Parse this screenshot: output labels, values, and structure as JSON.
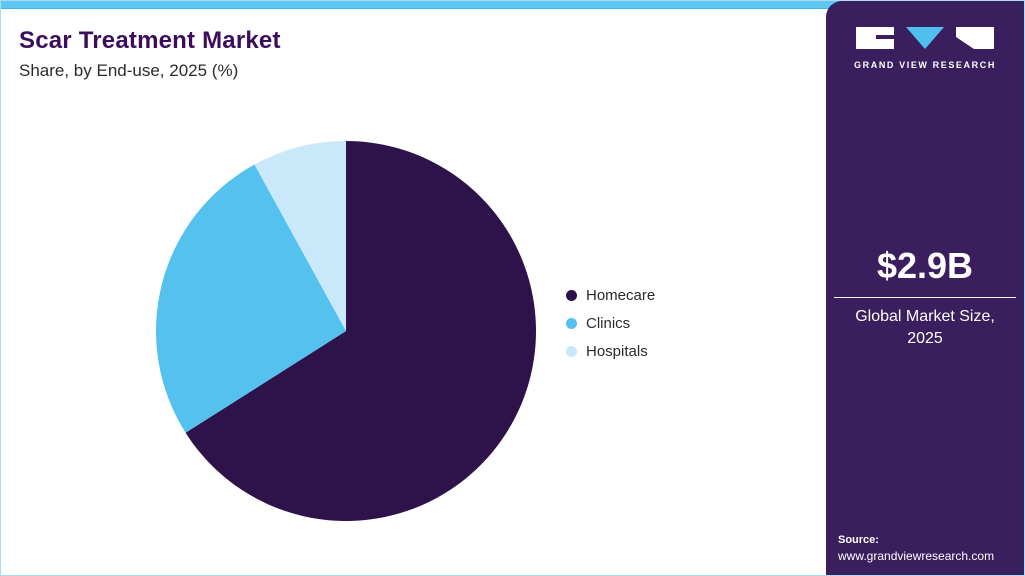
{
  "header": {
    "title": "Scar Treatment Market",
    "subtitle": "Share, by End-use, 2025 (%)"
  },
  "chart_data": {
    "type": "pie",
    "title": "Scar Treatment Market Share, by End-use, 2025 (%)",
    "categories": [
      "Homecare",
      "Clinics",
      "Hospitals"
    ],
    "values": [
      66,
      26,
      8
    ],
    "unit": "%",
    "colors": [
      "#2d1349",
      "#55c1ef",
      "#c9e9fb"
    ],
    "start_angle_deg": 0,
    "direction": "clockwise",
    "legend_position": "right",
    "labels_shown": false
  },
  "sidebar": {
    "logo_text": "GRAND VIEW RESEARCH",
    "market_size": "$2.9B",
    "market_size_label": "Global Market Size, 2025",
    "source_label": "Source:",
    "source_url": "www.grandviewresearch.com"
  },
  "colors": {
    "accent_bar": "#5ec7f2",
    "sidebar_bg": "#3a1f5e",
    "title_text": "#3c0d5e",
    "body_text": "#2b2b2b",
    "logo_triangle": "#4fc0ee"
  }
}
